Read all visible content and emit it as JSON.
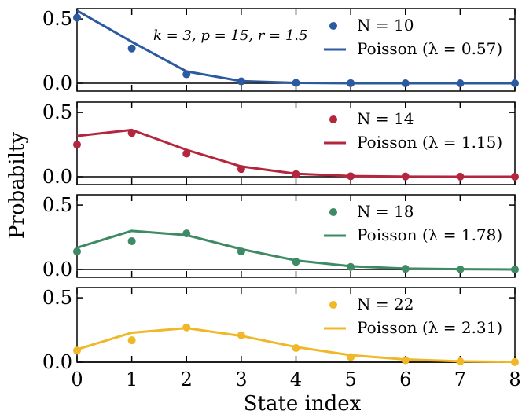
{
  "chart_data": {
    "type": "scatter",
    "ylabel": "Probabilty",
    "xlabel": "State index",
    "annotation": "k = 3, p = 15, r = 1.5",
    "xlim": [
      0,
      8
    ],
    "ylim": [
      0,
      0.58
    ],
    "xticks": [
      "0",
      "1",
      "2",
      "3",
      "4",
      "5",
      "6",
      "7",
      "8"
    ],
    "yticks": [
      "0.0",
      "0.5"
    ],
    "x": [
      0,
      1,
      2,
      3,
      4,
      5,
      6,
      7,
      8
    ],
    "panels": [
      {
        "color": "#2c5aa0",
        "points_label": "N = 10",
        "line_label": "Poisson (λ = 0.57)",
        "points": [
          0.51,
          0.27,
          0.07,
          0.015,
          0.003,
          0.001,
          0.0,
          0.0,
          0.0
        ],
        "poisson": [
          0.565,
          0.322,
          0.092,
          0.017,
          0.003,
          0.0,
          0.0,
          0.0,
          0.0
        ]
      },
      {
        "color": "#b3263e",
        "points_label": "N = 14",
        "line_label": "Poisson (λ = 1.15)",
        "points": [
          0.25,
          0.34,
          0.18,
          0.06,
          0.02,
          0.004,
          0.002,
          0.001,
          0.0
        ],
        "poisson": [
          0.317,
          0.364,
          0.209,
          0.08,
          0.023,
          0.005,
          0.001,
          0.0,
          0.0
        ]
      },
      {
        "color": "#3d8a64",
        "points_label": "N = 18",
        "line_label": "Poisson (λ = 1.78)",
        "points": [
          0.14,
          0.22,
          0.28,
          0.14,
          0.06,
          0.02,
          0.005,
          0.001,
          0.0
        ],
        "poisson": [
          0.169,
          0.3,
          0.267,
          0.158,
          0.07,
          0.025,
          0.007,
          0.002,
          0.0
        ]
      },
      {
        "color": "#f0b829",
        "points_label": "N = 22",
        "line_label": "Poisson (λ = 2.31)",
        "points": [
          0.09,
          0.17,
          0.27,
          0.21,
          0.11,
          0.04,
          0.015,
          0.005,
          0.001
        ],
        "poisson": [
          0.099,
          0.229,
          0.265,
          0.204,
          0.118,
          0.054,
          0.021,
          0.007,
          0.002
        ]
      }
    ]
  }
}
